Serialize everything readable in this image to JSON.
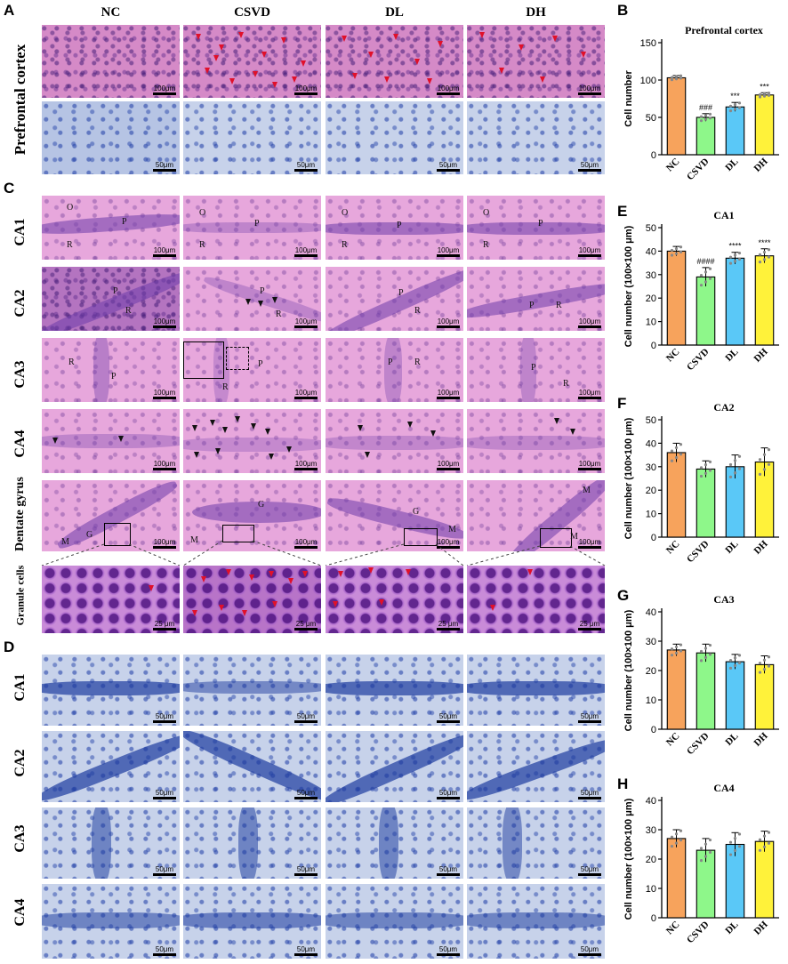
{
  "panel_letters": {
    "A": "A",
    "B": "B",
    "C": "C",
    "D": "D",
    "E": "E",
    "F": "F",
    "G": "G",
    "H": "H"
  },
  "groups": [
    "NC",
    "CSVD",
    "DL",
    "DH"
  ],
  "row_labels": {
    "prefrontal": "Prefrontal cortex",
    "ca1": "CA1",
    "ca2": "CA2",
    "ca3": "CA3",
    "ca4": "CA4",
    "dentate": "Dentate gyrus",
    "granule": "Granule cells"
  },
  "region_labels": {
    "O": "O",
    "P": "P",
    "R": "R",
    "G": "G",
    "M": "M"
  },
  "scale_bars": {
    "s100": "100μm",
    "s50": "50μm",
    "s25": "25 μm"
  },
  "colors": {
    "NC": "#f7a35c",
    "CSVD": "#8ef78a",
    "DL": "#5ac8f7",
    "DH": "#fff23a"
  },
  "chart_data": [
    {
      "id": "B",
      "type": "bar",
      "title": "Prefrontal cortex",
      "ylabel": "Cell number",
      "categories": [
        "NC",
        "CSVD",
        "DL",
        "DH"
      ],
      "values": [
        103,
        50,
        64,
        80
      ],
      "errors": [
        3,
        5,
        6,
        3
      ],
      "ylim": [
        0,
        150
      ],
      "yticks": [
        0,
        50,
        100,
        150
      ],
      "annotations": [
        "",
        "###",
        "***",
        "***"
      ]
    },
    {
      "id": "E",
      "type": "bar",
      "title": "CA1",
      "ylabel": "Cell number (100×100 μm)",
      "categories": [
        "NC",
        "CSVD",
        "DL",
        "DH"
      ],
      "values": [
        40,
        29,
        37,
        38
      ],
      "errors": [
        2,
        4,
        2.5,
        3
      ],
      "ylim": [
        0,
        50
      ],
      "yticks": [
        0,
        10,
        20,
        30,
        40,
        50
      ],
      "annotations": [
        "",
        "####",
        "****",
        "****"
      ]
    },
    {
      "id": "F",
      "type": "bar",
      "title": "CA2",
      "ylabel": "Cell number (100×100 μm)",
      "categories": [
        "NC",
        "CSVD",
        "DL",
        "DH"
      ],
      "values": [
        36,
        29,
        30,
        32
      ],
      "errors": [
        4,
        3.5,
        5,
        6
      ],
      "ylim": [
        0,
        50
      ],
      "yticks": [
        0,
        10,
        20,
        30,
        40,
        50
      ],
      "annotations": [
        "",
        "",
        "",
        ""
      ]
    },
    {
      "id": "G",
      "type": "bar",
      "title": "CA3",
      "ylabel": "Cell number (100×100 μm)",
      "categories": [
        "NC",
        "CSVD",
        "DL",
        "DH"
      ],
      "values": [
        27,
        26,
        23,
        22
      ],
      "errors": [
        2,
        3,
        2.5,
        3
      ],
      "ylim": [
        0,
        40
      ],
      "yticks": [
        0,
        10,
        20,
        30,
        40
      ],
      "annotations": [
        "",
        "",
        "",
        ""
      ]
    },
    {
      "id": "H",
      "type": "bar",
      "title": "CA4",
      "ylabel": "Cell number (100×100 μm)",
      "categories": [
        "NC",
        "CSVD",
        "DL",
        "DH"
      ],
      "values": [
        27,
        23,
        25,
        26
      ],
      "errors": [
        3,
        4,
        4,
        3.5
      ],
      "ylim": [
        0,
        40
      ],
      "yticks": [
        0,
        10,
        20,
        30,
        40
      ],
      "annotations": [
        "",
        "",
        "",
        ""
      ]
    }
  ]
}
